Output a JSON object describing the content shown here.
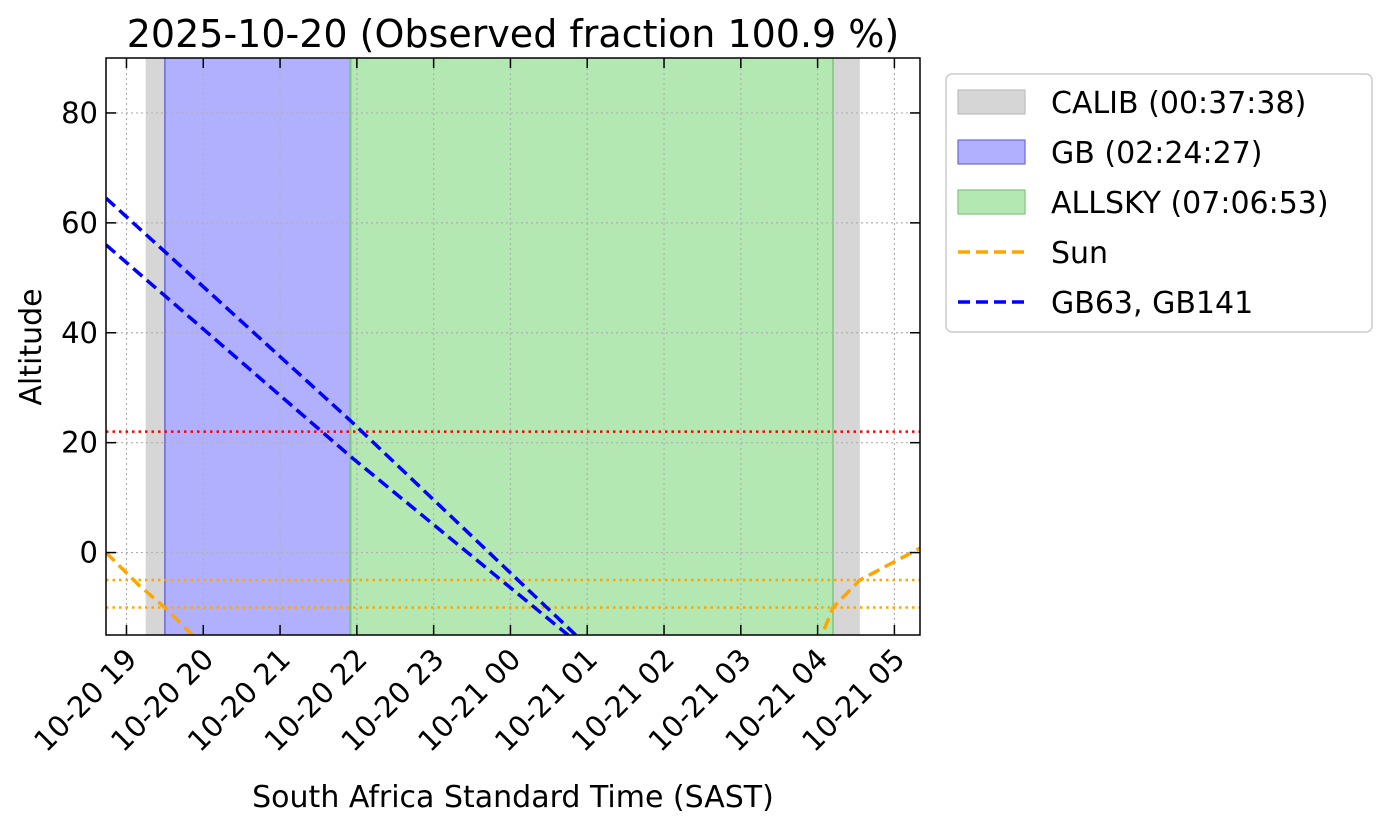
{
  "chart_data": {
    "type": "line",
    "title": "2025-10-20 (Observed fraction 100.9 %)",
    "xlabel": "South Africa Standard Time (SAST)",
    "ylabel": "Altitude",
    "xlim": [
      "2025-10-20 18:44",
      "2025-10-21 05:20"
    ],
    "ylim": [
      -15,
      90
    ],
    "x_ticks": [
      {
        "t": "2025-10-20 19:00",
        "label": "10-20 19"
      },
      {
        "t": "2025-10-20 20:00",
        "label": "10-20 20"
      },
      {
        "t": "2025-10-20 21:00",
        "label": "10-20 21"
      },
      {
        "t": "2025-10-20 22:00",
        "label": "10-20 22"
      },
      {
        "t": "2025-10-20 23:00",
        "label": "10-20 23"
      },
      {
        "t": "2025-10-21 00:00",
        "label": "10-21 00"
      },
      {
        "t": "2025-10-21 01:00",
        "label": "10-21 01"
      },
      {
        "t": "2025-10-21 02:00",
        "label": "10-21 02"
      },
      {
        "t": "2025-10-21 03:00",
        "label": "10-21 03"
      },
      {
        "t": "2025-10-21 04:00",
        "label": "10-21 04"
      },
      {
        "t": "2025-10-21 05:00",
        "label": "10-21 05"
      }
    ],
    "y_ticks": [
      0,
      20,
      40,
      60,
      80
    ],
    "grid": true,
    "legend_position": "outside-right-top",
    "spans": [
      {
        "name": "CALIB (00:37:38)",
        "start": "2025-10-20 19:15",
        "end": "2025-10-20 19:30",
        "color": "#d6d6d6"
      },
      {
        "name": "GB (02:24:27)",
        "start": "2025-10-20 19:30",
        "end": "2025-10-20 21:55",
        "color": "#b0b0ff"
      },
      {
        "name": "ALLSKY (07:06:53)",
        "start": "2025-10-20 21:55",
        "end": "2025-10-21 04:12",
        "color": "#b3e8b3"
      },
      {
        "name": "",
        "start": "2025-10-21 04:12",
        "end": "2025-10-21 04:33",
        "color": "#d6d6d6"
      }
    ],
    "hlines": [
      {
        "y": 22,
        "color": "#ff0000"
      },
      {
        "y": -5,
        "color": "#ffa500"
      },
      {
        "y": -10,
        "color": "#ffa500"
      }
    ],
    "series": [
      {
        "name": "Sun",
        "color": "#ffa500",
        "segments": [
          {
            "x": [
              "2025-10-20 18:44",
              "2025-10-20 19:10",
              "2025-10-20 19:30",
              "2025-10-20 20:00"
            ],
            "y": [
              0,
              -6,
              -10,
              -17
            ]
          },
          {
            "x": [
              "2025-10-21 04:00",
              "2025-10-21 04:12",
              "2025-10-21 04:33",
              "2025-10-21 05:20"
            ],
            "y": [
              -17,
              -10,
              -5,
              0.8
            ]
          }
        ]
      },
      {
        "name": "GB63, GB141",
        "color": "#0000ff",
        "segments": [
          {
            "x": [
              "2025-10-20 18:44",
              "2025-10-20 21:55",
              "2025-10-21 00:51"
            ],
            "y": [
              64.5,
              24,
              -15
            ]
          },
          {
            "x": [
              "2025-10-20 18:44",
              "2025-10-20 21:55",
              "2025-10-21 00:45"
            ],
            "y": [
              56,
              17.5,
              -15
            ]
          }
        ]
      }
    ]
  }
}
